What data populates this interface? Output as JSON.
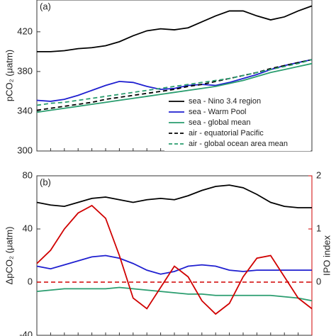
{
  "chart_data": [
    {
      "type": "line",
      "panel_label": "(a)",
      "ylabel": "pCO₂ (μatm)",
      "x": [
        0,
        1,
        2,
        3,
        4,
        5,
        6,
        7,
        8,
        9,
        10,
        11,
        12,
        13,
        14,
        15,
        16,
        17,
        18,
        19,
        20
      ],
      "xlim": [
        0,
        20
      ],
      "ylim": [
        300,
        452
      ],
      "yticks": [
        300,
        340,
        380,
        420
      ],
      "series": [
        {
          "name": "sea - Nino 3.4 region",
          "color": "#000000",
          "dash": false,
          "values": [
            400,
            400,
            401,
            403,
            404,
            406,
            410,
            416,
            421,
            423,
            422,
            424,
            430,
            436,
            441,
            441,
            436,
            432,
            435,
            441,
            446
          ]
        },
        {
          "name": "sea - Warm Pool",
          "color": "#1f1fd0",
          "dash": false,
          "values": [
            351,
            350,
            352,
            356,
            361,
            366,
            370,
            369,
            365,
            362,
            363,
            366,
            367,
            366,
            369,
            373,
            377,
            382,
            386,
            389,
            392
          ]
        },
        {
          "name": "sea - global mean",
          "color": "#2a9d6f",
          "dash": false,
          "values": [
            339,
            341,
            343,
            345,
            347,
            349,
            351,
            353,
            355,
            357,
            359,
            361,
            363,
            365,
            368,
            371,
            375,
            379,
            382,
            385,
            388
          ]
        },
        {
          "name": "air  - equatorial Pacific",
          "color": "#000000",
          "dash": true,
          "values": [
            341,
            343,
            345,
            347,
            349,
            352,
            354,
            356,
            358,
            360,
            362,
            365,
            367,
            370,
            373,
            376,
            379,
            383,
            386,
            389,
            392
          ]
        },
        {
          "name": "air  - global ocean area mean",
          "color": "#2a9d6f",
          "dash": true,
          "values": [
            346,
            348,
            349,
            351,
            353,
            355,
            357,
            359,
            361,
            363,
            365,
            367,
            369,
            371,
            373,
            376,
            379,
            382,
            385,
            388,
            392
          ]
        }
      ]
    },
    {
      "type": "line",
      "panel_label": "(b)",
      "ylabel": "ΔpCO₂ (μatm)",
      "y2label": "IPO index",
      "x": [
        0,
        1,
        2,
        3,
        4,
        5,
        6,
        7,
        8,
        9,
        10,
        11,
        12,
        13,
        14,
        15,
        16,
        17,
        18,
        19,
        20
      ],
      "xlim": [
        0,
        20
      ],
      "ylim": [
        -40,
        80
      ],
      "yticks": [
        -40,
        0,
        40,
        80
      ],
      "y2lim": [
        -1,
        2
      ],
      "y2ticks": [
        0,
        1,
        2
      ],
      "y2color": "#d00000",
      "series": [
        {
          "color": "#000000",
          "values": [
            60,
            58,
            57,
            60,
            63,
            64,
            62,
            60,
            62,
            63,
            62,
            65,
            69,
            72,
            73,
            71,
            66,
            60,
            57,
            56,
            56
          ]
        },
        {
          "color": "#1f1fd0",
          "values": [
            12,
            10,
            13,
            16,
            19,
            20,
            18,
            14,
            9,
            6,
            8,
            12,
            13,
            12,
            9,
            8,
            9,
            9,
            9,
            9,
            9
          ]
        },
        {
          "color": "#2a9d6f",
          "values": [
            -7,
            -6,
            -5,
            -5,
            -5,
            -5,
            -4,
            -5,
            -6,
            -7,
            -8,
            -9,
            -9,
            -10,
            -10,
            -10,
            -10,
            -10,
            -11,
            -12,
            -14
          ]
        },
        {
          "color": "#d00000",
          "axis": "y2",
          "values": [
            0.35,
            0.6,
            1.0,
            1.3,
            1.44,
            1.2,
            0.5,
            -0.3,
            -0.5,
            -0.1,
            0.3,
            0.1,
            -0.35,
            -0.6,
            -0.4,
            0.1,
            0.45,
            0.5,
            0.1,
            -0.3,
            -0.5
          ]
        }
      ]
    }
  ]
}
